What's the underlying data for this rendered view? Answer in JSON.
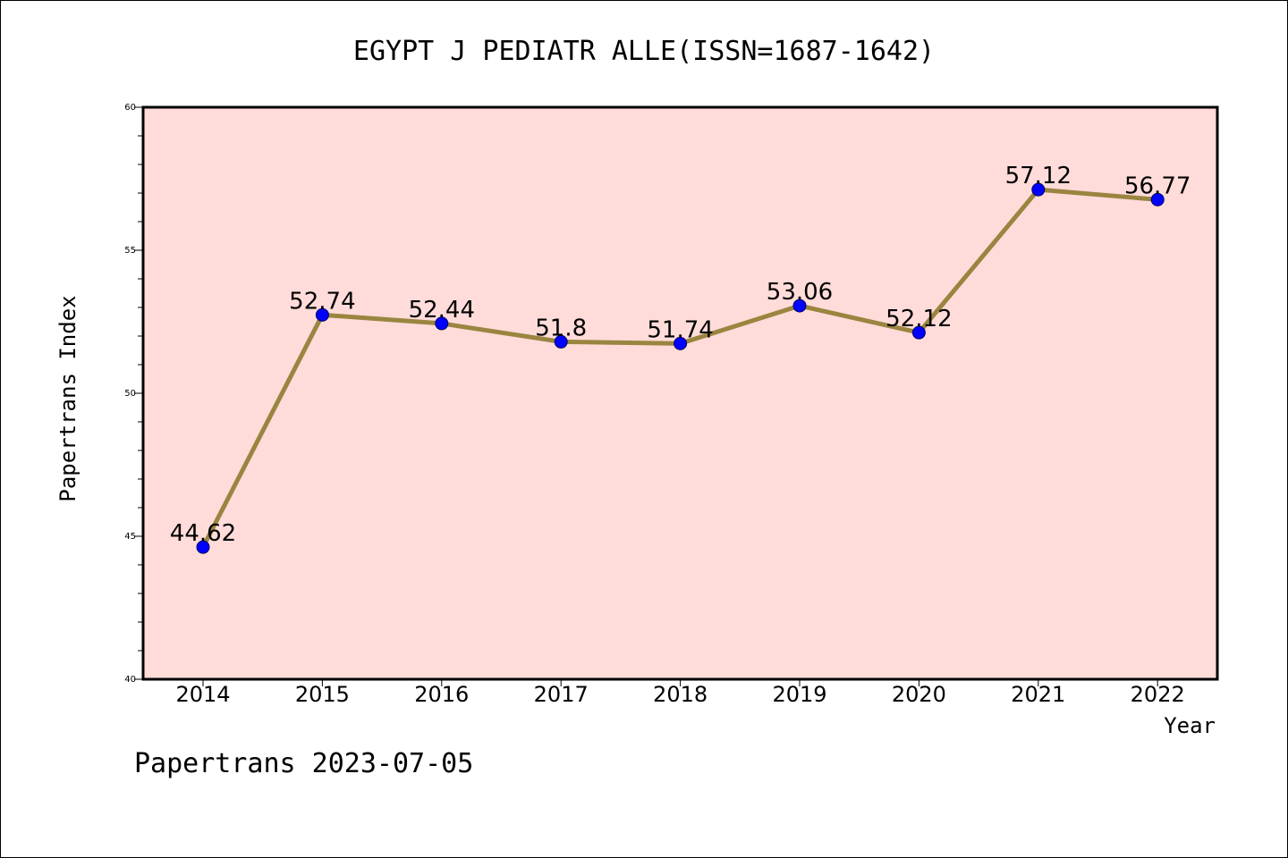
{
  "chart_data": {
    "type": "line",
    "title": "EGYPT J PEDIATR ALLE(ISSN=1687-1642)",
    "xlabel": "Year",
    "ylabel": "Papertrans Index",
    "categories": [
      "2014",
      "2015",
      "2016",
      "2017",
      "2018",
      "2019",
      "2020",
      "2021",
      "2022"
    ],
    "values": [
      44.62,
      52.74,
      52.44,
      51.8,
      51.74,
      53.06,
      52.12,
      57.12,
      56.77
    ],
    "data_labels": [
      "44.62",
      "52.74",
      "52.44",
      "51.8",
      "51.74",
      "53.06",
      "52.12",
      "57.12",
      "56.77"
    ],
    "ylim": [
      40,
      60
    ],
    "yticks": [
      "40",
      "45",
      "50",
      "55",
      "60"
    ],
    "grid": false,
    "legend": "none",
    "colors": {
      "plot_background": "#ffdcda",
      "line": "#9a8540",
      "marker": "#0000ff",
      "marker_edge": "#000066"
    }
  },
  "footer": "Papertrans 2023-07-05"
}
